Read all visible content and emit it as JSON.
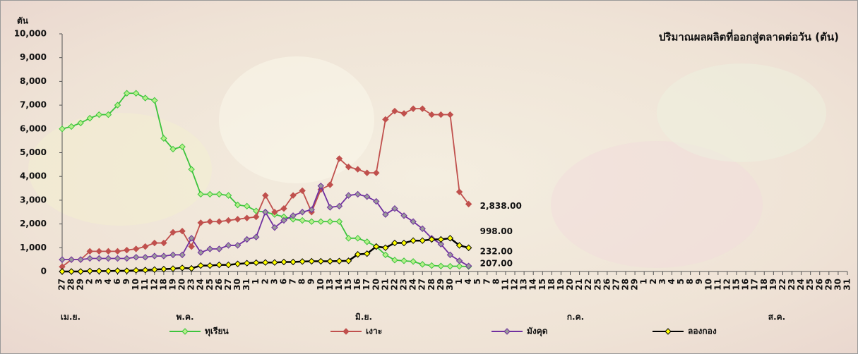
{
  "chart_data": {
    "type": "line",
    "title": "ปริมาณผลผลิตที่ออกสู่ตลาดต่อวัน  (ตัน)",
    "y_label": "ตัน",
    "categories": [
      "27",
      "28",
      "29",
      "2",
      "3",
      "4",
      "6",
      "9",
      "10",
      "11",
      "12",
      "18",
      "19",
      "20",
      "23",
      "24",
      "25",
      "26",
      "27",
      "30",
      "31",
      "1",
      "2",
      "3",
      "6",
      "7",
      "8",
      "9",
      "10",
      "13",
      "14",
      "15",
      "16",
      "17",
      "20",
      "21",
      "22",
      "23",
      "24",
      "27",
      "28",
      "29",
      "30",
      "1",
      "4",
      "5",
      "7",
      "8",
      "11",
      "12",
      "13",
      "14",
      "15",
      "18",
      "19",
      "20",
      "21",
      "22",
      "25",
      "26",
      "27",
      "28",
      "29",
      "1",
      "2",
      "3",
      "4",
      "5",
      "8",
      "9",
      "10",
      "11",
      "12",
      "15",
      "16",
      "17",
      "18",
      "19",
      "22",
      "23",
      "24",
      "25",
      "26",
      "29",
      "30",
      "31"
    ],
    "month_labels": [
      "เม.ย.",
      "พ.ค.",
      "มิ.ย.",
      "ก.ค.",
      "ส.ค."
    ],
    "ylim": [
      0,
      10000
    ],
    "yticks": [
      0,
      {
        "value": 1000,
        "label": "1,000"
      },
      {
        "value": 2000,
        "label": "2,000"
      },
      {
        "value": 3000,
        "label": "3,000"
      },
      {
        "value": 4000,
        "label": "4,000"
      },
      {
        "value": 5000,
        "label": "5,000"
      },
      {
        "value": 6000,
        "label": "6,000"
      },
      {
        "value": 7000,
        "label": "7,000"
      },
      {
        "value": 8000,
        "label": "8,000"
      },
      {
        "value": 9000,
        "label": "9,000"
      },
      {
        "value": 10000,
        "label": "10,000"
      }
    ],
    "series": [
      {
        "name": "ทุเรียน",
        "color": "#3cc43c",
        "marker_fill": "#b6f08a",
        "end_label": "207.00",
        "values": [
          6000,
          6100,
          6250,
          6450,
          6600,
          6600,
          7000,
          7500,
          7500,
          7300,
          7200,
          5600,
          5150,
          5250,
          4300,
          3250,
          3250,
          3250,
          3200,
          2800,
          2750,
          2550,
          2500,
          2400,
          2300,
          2200,
          2150,
          2100,
          2100,
          2100,
          2100,
          1400,
          1400,
          1250,
          1050,
          700,
          480,
          450,
          420,
          300,
          250,
          230,
          220,
          220,
          207,
          null,
          null,
          null,
          null,
          null,
          null,
          null,
          null,
          null,
          null,
          null,
          null,
          null,
          null,
          null,
          null,
          null,
          null,
          null,
          null,
          null,
          null,
          null,
          null,
          null,
          null,
          null,
          null,
          null,
          null,
          null,
          null,
          null,
          null,
          null,
          null,
          null,
          null,
          null,
          null,
          null
        ]
      },
      {
        "name": "เงาะ",
        "color": "#c0504d",
        "marker_fill": "#c0504d",
        "end_label": "2,838.00",
        "values": [
          200,
          500,
          500,
          850,
          850,
          850,
          850,
          900,
          950,
          1050,
          1200,
          1200,
          1650,
          1700,
          1050,
          2050,
          2100,
          2100,
          2150,
          2200,
          2250,
          2300,
          3200,
          2500,
          2650,
          3200,
          3400,
          2500,
          3450,
          3650,
          4750,
          4400,
          4300,
          4150,
          4150,
          6400,
          6750,
          6650,
          6850,
          6850,
          6600,
          6600,
          6600,
          3350,
          2838,
          null,
          null,
          null,
          null,
          null,
          null,
          null,
          null,
          null,
          null,
          null,
          null,
          null,
          null,
          null,
          null,
          null,
          null,
          null,
          null,
          null,
          null,
          null,
          null,
          null,
          null,
          null,
          null,
          null,
          null,
          null,
          null,
          null,
          null,
          null,
          null,
          null,
          null,
          null,
          null,
          null
        ]
      },
      {
        "name": "มังคุด",
        "color": "#7030a0",
        "marker_fill": "#9a9a9a",
        "end_label": "232.00",
        "values": [
          500,
          500,
          500,
          550,
          550,
          550,
          550,
          550,
          600,
          600,
          650,
          650,
          700,
          700,
          1400,
          800,
          950,
          950,
          1100,
          1100,
          1350,
          1450,
          2500,
          1850,
          2150,
          2350,
          2500,
          2600,
          3600,
          2700,
          2750,
          3200,
          3250,
          3150,
          2950,
          2400,
          2650,
          2350,
          2100,
          1800,
          1400,
          1150,
          700,
          450,
          232,
          null,
          null,
          null,
          null,
          null,
          null,
          null,
          null,
          null,
          null,
          null,
          null,
          null,
          null,
          null,
          null,
          null,
          null,
          null,
          null,
          null,
          null,
          null,
          null,
          null,
          null,
          null,
          null,
          null,
          null,
          null,
          null,
          null,
          null,
          null,
          null,
          null,
          null,
          null,
          null,
          null
        ]
      },
      {
        "name": "ลองกอง",
        "color": "#000000",
        "marker_fill": "#ffff00",
        "end_label": "998.00",
        "values": [
          0,
          0,
          0,
          20,
          20,
          20,
          30,
          30,
          50,
          60,
          80,
          100,
          120,
          150,
          130,
          250,
          250,
          280,
          280,
          320,
          350,
          370,
          380,
          380,
          400,
          400,
          420,
          430,
          430,
          430,
          440,
          450,
          720,
          750,
          1050,
          1000,
          1200,
          1200,
          1300,
          1300,
          1350,
          1350,
          1400,
          1100,
          998,
          null,
          null,
          null,
          null,
          null,
          null,
          null,
          null,
          null,
          null,
          null,
          null,
          null,
          null,
          null,
          null,
          null,
          null,
          null,
          null,
          null,
          null,
          null,
          null,
          null,
          null,
          null,
          null,
          null,
          null,
          null,
          null,
          null,
          null,
          null,
          null,
          null,
          null,
          null,
          null,
          null
        ]
      }
    ]
  }
}
